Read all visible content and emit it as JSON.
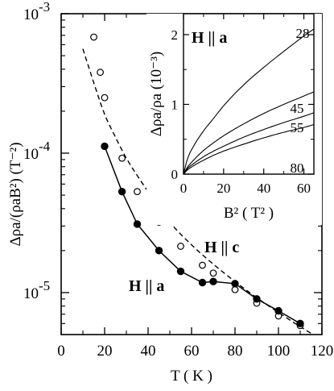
{
  "chart_data": [
    {
      "type": "scatter",
      "title": "",
      "xlabel": "T ( K )",
      "ylabel": "Δρa/(ρaB²) (T⁻²)",
      "xlim": [
        0,
        120
      ],
      "ylim": [
        5e-06,
        0.001
      ],
      "yscale": "log",
      "x_ticks": [
        "0",
        "20",
        "40",
        "60",
        "80",
        "100",
        "120"
      ],
      "y_ticks": [
        {
          "value": 0.001,
          "base": "10",
          "exp": "-3"
        },
        {
          "value": 0.0001,
          "base": "10",
          "exp": "-4"
        },
        {
          "value": 1e-05,
          "base": "10",
          "exp": "-5"
        }
      ],
      "annotations": {
        "h_a": "H || a",
        "h_c": "H || c"
      },
      "series": [
        {
          "key": "h_a",
          "marker": "filled-circle",
          "line": "solid",
          "x": [
            20,
            28,
            35,
            45,
            55,
            65,
            70,
            80,
            90,
            100,
            110
          ],
          "y": [
            0.000112,
            5.3e-05,
            3.1e-05,
            2e-05,
            1.42e-05,
            1.18e-05,
            1.2e-05,
            1.16e-05,
            9e-06,
            7.4e-06,
            6e-06
          ]
        },
        {
          "key": "h_c",
          "marker": "open-circle",
          "line": "none",
          "x": [
            15,
            18,
            20,
            28,
            35,
            45,
            55,
            65,
            70,
            80,
            90,
            100,
            110
          ],
          "y": [
            0.00068,
            0.00038,
            0.00025,
            9.2e-05,
            5.3e-05,
            3.2e-05,
            2.15e-05,
            1.57e-05,
            1.38e-05,
            1.05e-05,
            8.4e-06,
            6.8e-06,
            5.8e-06
          ]
        },
        {
          "key": "h_c_fit",
          "marker": "none",
          "line": "dashed",
          "x": [
            10,
            15,
            20,
            25,
            30,
            40,
            50,
            60,
            70,
            80,
            90,
            100,
            110,
            115
          ],
          "y": [
            0.00056,
            0.00032,
            0.00019,
            0.00013,
            9.2e-05,
            5.3e-05,
            3.2e-05,
            2.2e-05,
            1.6e-05,
            1.2e-05,
            9.2e-06,
            7.2e-06,
            5.7e-06,
            5.1e-06
          ]
        }
      ]
    },
    {
      "type": "line",
      "title": "H || a",
      "xlabel": "B² ( T² )",
      "ylabel": "Δρa/ρa (10⁻³)",
      "xlim": [
        0,
        65
      ],
      "ylim": [
        0,
        2.3
      ],
      "x_ticks": [
        "0",
        "20",
        "40",
        "60"
      ],
      "y_ticks": [
        "0",
        "1",
        "2"
      ],
      "series": [
        {
          "name": "28",
          "x": [
            0,
            2,
            5,
            10,
            15,
            20,
            30,
            40,
            50,
            60,
            65
          ],
          "y": [
            0,
            0.22,
            0.4,
            0.62,
            0.8,
            0.98,
            1.28,
            1.53,
            1.76,
            1.98,
            2.08
          ]
        },
        {
          "name": "45",
          "x": [
            0,
            2,
            5,
            10,
            15,
            20,
            30,
            40,
            50,
            60,
            65
          ],
          "y": [
            0,
            0.1,
            0.2,
            0.34,
            0.45,
            0.55,
            0.72,
            0.87,
            1.0,
            1.12,
            1.18
          ]
        },
        {
          "name": "55",
          "x": [
            0,
            2,
            5,
            10,
            15,
            20,
            30,
            40,
            50,
            60,
            65
          ],
          "y": [
            0,
            0.08,
            0.15,
            0.25,
            0.33,
            0.4,
            0.53,
            0.64,
            0.74,
            0.83,
            0.88
          ]
        },
        {
          "name": "80",
          "x": [
            0,
            2,
            5,
            10,
            15,
            20,
            30,
            40,
            50,
            60,
            65
          ],
          "y": [
            0,
            0.06,
            0.12,
            0.2,
            0.27,
            0.33,
            0.43,
            0.52,
            0.6,
            0.67,
            0.71
          ]
        }
      ]
    }
  ]
}
